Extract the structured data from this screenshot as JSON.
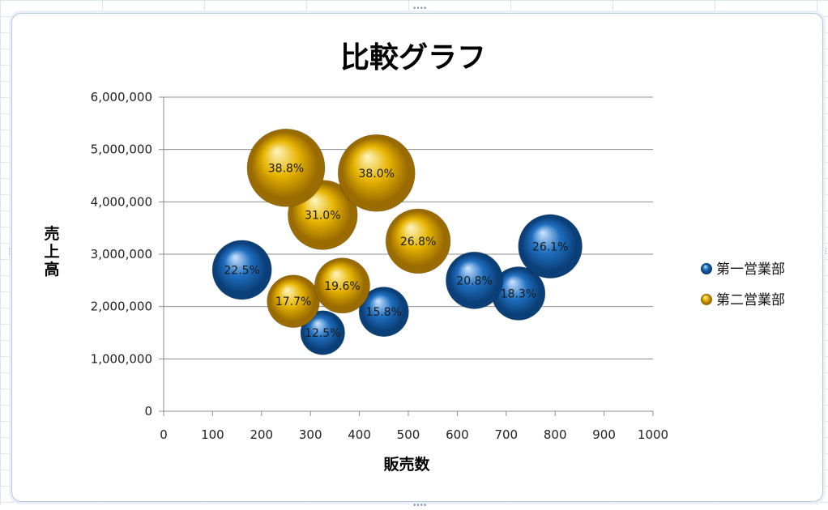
{
  "chart_data": {
    "type": "bubble",
    "title": "比較グラフ",
    "xlabel": "販売数",
    "ylabel": "売上高",
    "xlim": [
      0,
      1000
    ],
    "ylim": [
      0,
      6000000
    ],
    "x_ticks": [
      "0",
      "100",
      "200",
      "300",
      "400",
      "500",
      "600",
      "700",
      "800",
      "900",
      "1000"
    ],
    "y_ticks": [
      "0",
      "1,000,000",
      "2,000,000",
      "3,000,000",
      "4,000,000",
      "5,000,000",
      "6,000,000"
    ],
    "grid": "horizontal",
    "legend_position": "right",
    "series": [
      {
        "name": "第一営業部",
        "color": "#1f6fc0",
        "points": [
          {
            "x": 160,
            "y": 2700000,
            "label": "22.5%",
            "size": 22.5
          },
          {
            "x": 325,
            "y": 1500000,
            "label": "12.5%",
            "size": 12.5
          },
          {
            "x": 450,
            "y": 1900000,
            "label": "15.8%",
            "size": 15.8
          },
          {
            "x": 635,
            "y": 2500000,
            "label": "20.8%",
            "size": 20.8
          },
          {
            "x": 725,
            "y": 2250000,
            "label": "18.3%",
            "size": 18.3
          },
          {
            "x": 790,
            "y": 3150000,
            "label": "26.1%",
            "size": 26.1
          }
        ]
      },
      {
        "name": "第二営業部",
        "color": "#e6b400",
        "points": [
          {
            "x": 265,
            "y": 2100000,
            "label": "17.7%",
            "size": 17.7
          },
          {
            "x": 365,
            "y": 2400000,
            "label": "19.6%",
            "size": 19.6
          },
          {
            "x": 250,
            "y": 4650000,
            "label": "38.8%",
            "size": 38.8
          },
          {
            "x": 435,
            "y": 4550000,
            "label": "38.0%",
            "size": 38.0
          },
          {
            "x": 325,
            "y": 3750000,
            "label": "31.0%",
            "size": 31.0
          },
          {
            "x": 520,
            "y": 3250000,
            "label": "26.8%",
            "size": 26.8
          }
        ]
      }
    ]
  }
}
